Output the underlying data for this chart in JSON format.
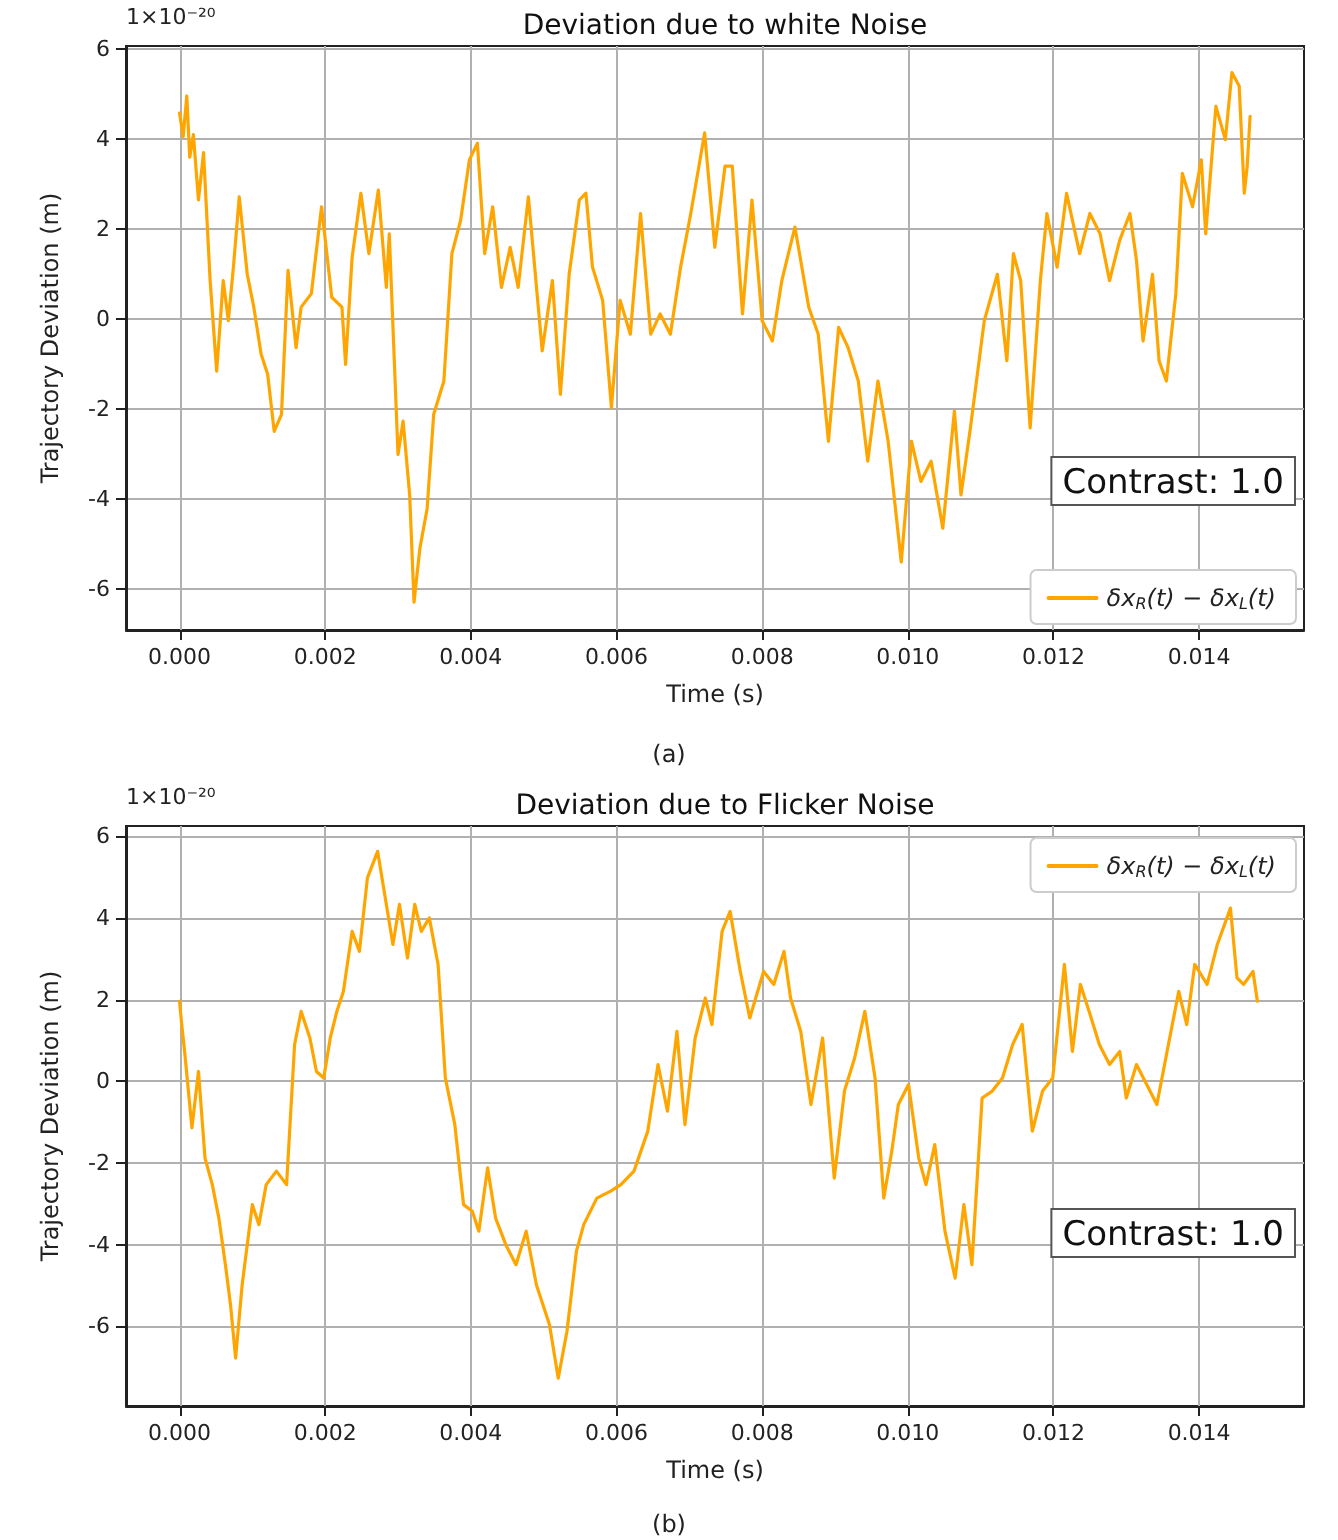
{
  "chart_data": [
    {
      "type": "line",
      "title": "Deviation due to white Noise",
      "xlabel": "Time (s)",
      "ylabel": "Trajectory Deviation (m)",
      "annotations": [
        "1×10⁻²⁰",
        "Contrast: 1.0",
        "(a)"
      ],
      "xlim": [
        -0.000735,
        0.01544
      ],
      "ylim": [
        -6.9,
        6.07
      ],
      "xticks": [
        {
          "value": 0,
          "label": "0.000"
        },
        {
          "value": 0.002,
          "label": "0.002"
        },
        {
          "value": 0.004,
          "label": "0.004"
        },
        {
          "value": 0.006,
          "label": "0.006"
        },
        {
          "value": 0.008,
          "label": "0.008"
        },
        {
          "value": 0.01,
          "label": "0.010"
        },
        {
          "value": 0.012,
          "label": "0.012"
        },
        {
          "value": 0.014,
          "label": "0.014"
        }
      ],
      "yticks": [
        -6,
        -4,
        -2,
        0,
        2,
        4,
        6
      ],
      "grid": true,
      "legend": "bottom right",
      "line_style": "solid",
      "series": [
        {
          "name": "δx$_{R}$(t) − δx$_{L}$(t)",
          "color": "#ffa500",
          "x": [
            0,
            5e-05,
            0.0001,
            0.00014,
            0.00019,
            0.00026,
            0.00033,
            0.00042,
            0.00051,
            0.0006,
            0.00067,
            0.00074,
            0.00082,
            0.00093,
            0.00102,
            0.00112,
            0.00121,
            0.0013,
            0.0014,
            0.00149,
            0.0016,
            0.00167,
            0.00181,
            0.00195,
            0.00209,
            0.00223,
            0.00228,
            0.00237,
            0.00249,
            0.0026,
            0.00273,
            0.00284,
            0.00288,
            0.003,
            0.00307,
            0.00316,
            0.00322,
            0.0033,
            0.0034,
            0.00349,
            0.00363,
            0.00374,
            0.00386,
            0.00398,
            0.00409,
            0.00419,
            0.0043,
            0.00442,
            0.00454,
            0.00465,
            0.00479,
            0.00498,
            0.00512,
            0.00523,
            0.00535,
            0.00549,
            0.00558,
            0.00567,
            0.00581,
            0.00593,
            0.00605,
            0.00619,
            0.00633,
            0.00647,
            0.0066,
            0.00674,
            0.00688,
            0.00702,
            0.00721,
            0.00735,
            0.00749,
            0.00759,
            0.00773,
            0.00786,
            0.008,
            0.00814,
            0.00827,
            0.00845,
            0.00864,
            0.00877,
            0.00891,
            0.00905,
            0.00918,
            0.00932,
            0.00945,
            0.00959,
            0.00973,
            0.00991,
            0.01005,
            0.01018,
            0.01032,
            0.01048,
            0.01064,
            0.01073,
            0.01086,
            0.01105,
            0.01123,
            0.01136,
            0.01145,
            0.01155,
            0.01168,
            0.01182,
            0.01191,
            0.01205,
            0.01218,
            0.01236,
            0.0125,
            0.01264,
            0.01277,
            0.01291,
            0.01305,
            0.01314,
            0.01323,
            0.01336,
            0.01345,
            0.01355,
            0.01368,
            0.01377,
            0.01391,
            0.01403,
            0.01409,
            0.01423,
            0.01436,
            0.01445,
            0.01455,
            0.01462,
            0.01466,
            0.0147
          ],
          "values": [
            4.58,
            4.06,
            4.96,
            3.6,
            4.1,
            2.65,
            3.7,
            0.86,
            -1.15,
            0.86,
            -0.03,
            1.16,
            2.72,
            1.0,
            0.27,
            -0.77,
            -1.22,
            -2.49,
            -2.11,
            1.09,
            -0.63,
            0.27,
            0.57,
            2.5,
            0.49,
            0.27,
            -1.0,
            1.38,
            2.8,
            1.46,
            2.87,
            0.71,
            1.9,
            -3.0,
            -2.26,
            -3.9,
            -6.28,
            -5.09,
            -4.2,
            -2.11,
            -1.37,
            1.46,
            2.2,
            3.54,
            3.91,
            1.46,
            2.5,
            0.71,
            1.6,
            0.71,
            2.72,
            -0.7,
            0.86,
            -1.67,
            1.0,
            2.65,
            2.8,
            1.16,
            0.42,
            -1.96,
            0.42,
            -0.33,
            2.35,
            -0.33,
            0.12,
            -0.33,
            1.16,
            2.35,
            4.14,
            1.6,
            3.4,
            3.4,
            0.12,
            2.65,
            -0.03,
            -0.48,
            0.86,
            2.05,
            0.27,
            -0.33,
            -2.71,
            -0.18,
            -0.63,
            -1.37,
            -3.15,
            -1.37,
            -2.71,
            -5.39,
            -2.71,
            -3.6,
            -3.15,
            -4.64,
            -2.04,
            -3.9,
            -2.41,
            -0.03,
            1.0,
            -0.92,
            1.46,
            0.86,
            -2.41,
            0.86,
            2.35,
            1.16,
            2.8,
            1.46,
            2.35,
            1.9,
            0.86,
            1.76,
            2.35,
            1.31,
            -0.48,
            1.0,
            -0.92,
            -1.37,
            0.57,
            3.24,
            2.5,
            3.54,
            1.9,
            4.73,
            3.99,
            5.48,
            5.18,
            2.8,
            3.4,
            4.51
          ]
        }
      ]
    },
    {
      "type": "line",
      "title": "Deviation due to Flicker Noise",
      "xlabel": "Time (s)",
      "ylabel": "Trajectory Deviation (m)",
      "annotations": [
        "1×10⁻²⁰",
        "Contrast: 1.0",
        "(b)"
      ],
      "xlim": [
        -0.000735,
        0.01544
      ],
      "ylim": [
        -7.95,
        6.25
      ],
      "xticks": [
        {
          "value": 0,
          "label": "0.000"
        },
        {
          "value": 0.002,
          "label": "0.002"
        },
        {
          "value": 0.004,
          "label": "0.004"
        },
        {
          "value": 0.006,
          "label": "0.006"
        },
        {
          "value": 0.008,
          "label": "0.008"
        },
        {
          "value": 0.01,
          "label": "0.010"
        },
        {
          "value": 0.012,
          "label": "0.012"
        },
        {
          "value": 0.014,
          "label": "0.014"
        }
      ],
      "yticks": [
        -6,
        -4,
        -2,
        0,
        2,
        4,
        6
      ],
      "grid": true,
      "legend": "top right",
      "line_style": "solid",
      "series": [
        {
          "name": "δx$_{R}$(t) − δx$_{L}$(t)",
          "color": "#ffa500",
          "x": [
            0,
            3e-05,
            7e-05,
            0.00017,
            0.00026,
            0.00035,
            0.00045,
            0.00054,
            0.00063,
            0.0007,
            0.00077,
            0.00086,
            0.001,
            0.00109,
            0.00119,
            0.00133,
            0.00147,
            0.00158,
            0.00167,
            0.00179,
            0.00188,
            0.00198,
            0.00207,
            0.00216,
            0.00225,
            0.00237,
            0.00247,
            0.00258,
            0.00272,
            0.00281,
            0.00293,
            0.00302,
            0.00313,
            0.00323,
            0.00332,
            0.00343,
            0.00355,
            0.00365,
            0.00378,
            0.0039,
            0.00402,
            0.00411,
            0.00423,
            0.00434,
            0.00448,
            0.00462,
            0.00476,
            0.0049,
            0.00508,
            0.0052,
            0.00532,
            0.00545,
            0.00555,
            0.00573,
            0.00592,
            0.00606,
            0.00624,
            0.00643,
            0.00657,
            0.0067,
            0.00683,
            0.00694,
            0.00708,
            0.00722,
            0.00731,
            0.00745,
            0.00756,
            0.0077,
            0.00783,
            0.00802,
            0.00816,
            0.0083,
            0.00839,
            0.00853,
            0.00867,
            0.00883,
            0.00899,
            0.00913,
            0.00927,
            0.00941,
            0.00955,
            0.00967,
            0.00978,
            0.00987,
            0.01001,
            0.01015,
            0.01025,
            0.01037,
            0.01051,
            0.01065,
            0.01077,
            0.01088,
            0.01102,
            0.01116,
            0.0113,
            0.01144,
            0.01157,
            0.01171,
            0.01185,
            0.01199,
            0.01215,
            0.01226,
            0.01237,
            0.01249,
            0.01263,
            0.01277,
            0.01291,
            0.013,
            0.01314,
            0.01328,
            0.01342,
            0.01356,
            0.01372,
            0.01383,
            0.01394,
            0.01411,
            0.01425,
            0.01443,
            0.01452,
            0.01461,
            0.01474,
            0.0148
          ],
          "values": [
            1.96,
            1.39,
            0.73,
            -1.14,
            0.24,
            -1.88,
            -2.53,
            -3.35,
            -4.49,
            -5.47,
            -6.78,
            -4.98,
            -3.02,
            -3.51,
            -2.53,
            -2.2,
            -2.53,
            0.9,
            1.71,
            1.06,
            0.24,
            0.08,
            1.06,
            1.71,
            2.2,
            3.67,
            3.18,
            4.98,
            5.63,
            4.65,
            3.35,
            4.33,
            3.02,
            4.33,
            3.67,
            4.0,
            2.86,
            0.08,
            -1.06,
            -3.02,
            -3.18,
            -3.67,
            -2.12,
            -3.35,
            -4.0,
            -4.49,
            -3.67,
            -4.98,
            -5.96,
            -7.27,
            -6.12,
            -4.16,
            -3.51,
            -2.86,
            -2.69,
            -2.53,
            -2.2,
            -1.22,
            0.41,
            -0.73,
            1.22,
            -1.06,
            1.06,
            2.04,
            1.39,
            3.67,
            4.16,
            2.69,
            1.55,
            2.69,
            2.37,
            3.18,
            2.04,
            1.22,
            -0.57,
            1.06,
            -2.37,
            -0.24,
            0.57,
            1.71,
            0.08,
            -2.86,
            -1.71,
            -0.57,
            -0.08,
            -1.88,
            -2.53,
            -1.55,
            -3.67,
            -4.82,
            -3.02,
            -4.49,
            -0.41,
            -0.24,
            0.08,
            0.9,
            1.39,
            -1.22,
            -0.24,
            0.08,
            2.86,
            0.73,
            2.37,
            1.71,
            0.9,
            0.41,
            0.73,
            -0.41,
            0.41,
            -0.08,
            -0.57,
            0.73,
            2.2,
            1.39,
            2.86,
            2.37,
            3.35,
            4.24,
            2.53,
            2.37,
            2.69,
            1.96
          ]
        }
      ]
    }
  ]
}
